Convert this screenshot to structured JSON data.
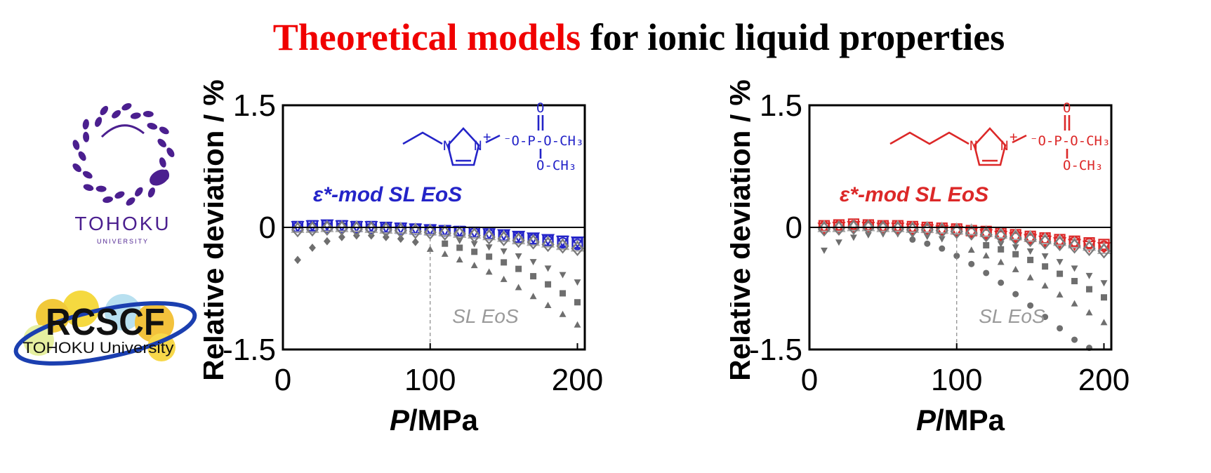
{
  "title": {
    "highlight": "Theoretical models",
    "rest": " for ionic liquid properties",
    "highlight_color": "#f00000"
  },
  "logos": {
    "tohoku_name": "TOHOKU",
    "tohoku_sub": "UNIVERSITY",
    "tohoku_color": "#4b1f8f",
    "rcscf_name": "RCSCF",
    "rcscf_sub": "TOHOKU University"
  },
  "chart_data": [
    {
      "type": "scatter",
      "xlabel_italic": "P",
      "xlabel_unit": "/MPa",
      "ylabel": "Relative deviation / %",
      "xlim": [
        0,
        205
      ],
      "ylim": [
        -1.5,
        1.5
      ],
      "xticks": [
        "0",
        "100",
        "200"
      ],
      "yticks": [
        "1.5",
        "0",
        "-1.5"
      ],
      "grid": false,
      "zero_line": true,
      "reference_vline_x": 100,
      "model_label_sym": "ε*",
      "model_label_text": "-mod SL EoS",
      "baseline_label": "SL EoS",
      "accent_color": "#2424c8",
      "molecule": {
        "chain_carbons": 2,
        "n1": "N",
        "n3": "N",
        "charge": "+",
        "anion_o_top": "O",
        "anion_line1": "⁻O-P-O-CH₃",
        "anion_line2": "O-CH₃"
      },
      "x": [
        10,
        20,
        30,
        40,
        50,
        60,
        70,
        80,
        90,
        100,
        110,
        120,
        130,
        140,
        150,
        160,
        170,
        180,
        190,
        200
      ],
      "mod_series": [
        {
          "marker": "circle",
          "values": [
            0.0,
            0.0,
            0.0,
            0.0,
            0.0,
            -0.01,
            -0.01,
            -0.02,
            -0.02,
            -0.03,
            -0.04,
            -0.05,
            -0.07,
            -0.09,
            -0.11,
            -0.13,
            -0.15,
            -0.17,
            -0.19,
            -0.21
          ]
        },
        {
          "marker": "square",
          "values": [
            0.01,
            0.02,
            0.02,
            0.02,
            0.01,
            0.01,
            0.0,
            -0.01,
            -0.02,
            -0.03,
            -0.04,
            -0.05,
            -0.06,
            -0.08,
            -0.1,
            -0.12,
            -0.14,
            -0.16,
            -0.17,
            -0.19
          ]
        },
        {
          "marker": "triangle-down",
          "values": [
            0.02,
            0.03,
            0.04,
            0.03,
            0.02,
            0.02,
            0.01,
            0.0,
            -0.01,
            -0.02,
            -0.03,
            -0.04,
            -0.05,
            -0.07,
            -0.08,
            -0.1,
            -0.12,
            -0.14,
            -0.16,
            -0.17
          ]
        },
        {
          "marker": "triangle-up",
          "values": [
            -0.01,
            -0.01,
            0.0,
            0.0,
            0.0,
            -0.01,
            -0.02,
            -0.02,
            -0.03,
            -0.04,
            -0.05,
            -0.07,
            -0.08,
            -0.1,
            -0.12,
            -0.15,
            -0.17,
            -0.19,
            -0.22,
            -0.24
          ]
        },
        {
          "marker": "diamond",
          "values": [
            -0.03,
            -0.02,
            -0.01,
            -0.01,
            -0.02,
            -0.02,
            -0.03,
            -0.04,
            -0.05,
            -0.06,
            -0.07,
            -0.08,
            -0.1,
            -0.12,
            -0.14,
            -0.16,
            -0.18,
            -0.21,
            -0.23,
            -0.26
          ]
        }
      ],
      "base_series": [
        {
          "marker": "diamond",
          "x": [
            10,
            20,
            30,
            40,
            50,
            60,
            70,
            80,
            90
          ],
          "values": [
            -0.4,
            -0.25,
            -0.17,
            -0.12,
            -0.1,
            -0.1,
            -0.12,
            -0.14,
            -0.18
          ]
        },
        {
          "marker": "triangle-up",
          "x": [
            100,
            110,
            120,
            130,
            140,
            150,
            160,
            170,
            180,
            190,
            200
          ],
          "values": [
            -0.27,
            -0.33,
            -0.4,
            -0.47,
            -0.55,
            -0.64,
            -0.74,
            -0.85,
            -0.96,
            -1.07,
            -1.2
          ]
        },
        {
          "marker": "square",
          "x": [
            110,
            120,
            130,
            140,
            150,
            160,
            170,
            180,
            190,
            200
          ],
          "values": [
            -0.2,
            -0.25,
            -0.3,
            -0.36,
            -0.43,
            -0.51,
            -0.6,
            -0.7,
            -0.81,
            -0.92
          ]
        },
        {
          "marker": "triangle-down",
          "x": [
            120,
            130,
            140,
            150,
            160,
            170,
            180,
            190,
            200
          ],
          "values": [
            -0.16,
            -0.2,
            -0.24,
            -0.29,
            -0.35,
            -0.42,
            -0.5,
            -0.58,
            -0.67
          ]
        }
      ]
    },
    {
      "type": "scatter",
      "xlabel_italic": "P",
      "xlabel_unit": "/MPa",
      "ylabel": "Relative deviation / %",
      "xlim": [
        0,
        205
      ],
      "ylim": [
        -1.5,
        1.5
      ],
      "xticks": [
        "0",
        "100",
        "200"
      ],
      "yticks": [
        "1.5",
        "0",
        "-1.5"
      ],
      "grid": false,
      "zero_line": true,
      "reference_vline_x": 100,
      "model_label_sym": "ε*",
      "model_label_text": "-mod SL EoS",
      "baseline_label": "SL EoS",
      "accent_color": "#dc2828",
      "molecule": {
        "chain_carbons": 4,
        "n1": "N",
        "n3": "N",
        "charge": "+",
        "anion_o_top": "O",
        "anion_line1": "⁻O-P-O-CH₃",
        "anion_line2": "O-CH₃"
      },
      "x": [
        10,
        20,
        30,
        40,
        50,
        60,
        70,
        80,
        90,
        100,
        110,
        120,
        130,
        140,
        150,
        160,
        170,
        180,
        190,
        200
      ],
      "mod_series": [
        {
          "marker": "circle",
          "values": [
            0.01,
            0.02,
            0.02,
            0.02,
            0.01,
            0.01,
            0.0,
            -0.01,
            -0.02,
            -0.03,
            -0.05,
            -0.06,
            -0.08,
            -0.1,
            -0.12,
            -0.14,
            -0.16,
            -0.18,
            -0.2,
            -0.23
          ]
        },
        {
          "marker": "square",
          "values": [
            0.02,
            0.03,
            0.04,
            0.03,
            0.02,
            0.02,
            0.01,
            0.0,
            -0.01,
            -0.02,
            -0.04,
            -0.05,
            -0.07,
            -0.09,
            -0.11,
            -0.13,
            -0.15,
            -0.17,
            -0.19,
            -0.21
          ]
        },
        {
          "marker": "triangle-down",
          "values": [
            0.0,
            0.01,
            0.02,
            0.01,
            0.0,
            0.0,
            -0.01,
            -0.02,
            -0.03,
            -0.04,
            -0.06,
            -0.08,
            -0.1,
            -0.12,
            -0.14,
            -0.16,
            -0.18,
            -0.2,
            -0.22,
            -0.24
          ]
        },
        {
          "marker": "triangle-up",
          "values": [
            0.0,
            0.0,
            0.01,
            0.01,
            0.0,
            0.0,
            -0.01,
            -0.01,
            -0.02,
            -0.03,
            -0.04,
            -0.06,
            -0.08,
            -0.1,
            -0.12,
            -0.15,
            -0.17,
            -0.2,
            -0.23,
            -0.27
          ]
        },
        {
          "marker": "diamond",
          "values": [
            -0.02,
            -0.01,
            0.0,
            0.0,
            -0.01,
            -0.02,
            -0.03,
            -0.03,
            -0.04,
            -0.05,
            -0.07,
            -0.09,
            -0.11,
            -0.13,
            -0.15,
            -0.18,
            -0.2,
            -0.23,
            -0.26,
            -0.29
          ]
        }
      ],
      "base_series": [
        {
          "marker": "triangle-down",
          "x": [
            10,
            20,
            30,
            40,
            50,
            60,
            70,
            80,
            90
          ],
          "values": [
            -0.28,
            -0.18,
            -0.12,
            -0.09,
            -0.08,
            -0.08,
            -0.09,
            -0.11,
            -0.14
          ]
        },
        {
          "marker": "circle",
          "x": [
            70,
            80,
            90,
            100,
            110,
            120,
            130,
            140,
            150,
            160,
            170,
            180,
            190
          ],
          "values": [
            -0.15,
            -0.2,
            -0.26,
            -0.35,
            -0.45,
            -0.56,
            -0.68,
            -0.82,
            -0.96,
            -1.1,
            -1.24,
            -1.38,
            -1.48
          ]
        },
        {
          "marker": "triangle-up",
          "x": [
            110,
            120,
            130,
            140,
            150,
            160,
            170,
            180,
            190,
            200
          ],
          "values": [
            -0.28,
            -0.35,
            -0.43,
            -0.52,
            -0.62,
            -0.72,
            -0.83,
            -0.94,
            -1.05,
            -1.17
          ]
        },
        {
          "marker": "square",
          "x": [
            120,
            130,
            140,
            150,
            160,
            170,
            180,
            190,
            200
          ],
          "values": [
            -0.22,
            -0.27,
            -0.33,
            -0.4,
            -0.48,
            -0.57,
            -0.66,
            -0.76,
            -0.86
          ]
        },
        {
          "marker": "triangle-down",
          "x": [
            130,
            140,
            150,
            160,
            170,
            180,
            190,
            200
          ],
          "values": [
            -0.2,
            -0.24,
            -0.29,
            -0.35,
            -0.42,
            -0.5,
            -0.59,
            -0.68
          ]
        }
      ]
    }
  ]
}
